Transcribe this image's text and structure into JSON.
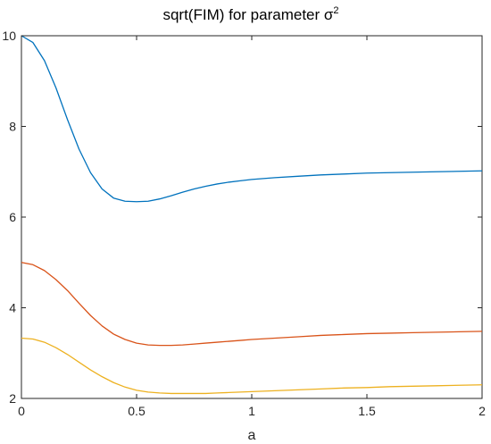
{
  "chart_data": {
    "type": "line",
    "title": "sqrt(FIM) for parameter σ",
    "title_superscript": "2",
    "xlabel": "a",
    "ylabel": "",
    "xlim": [
      0,
      2
    ],
    "ylim": [
      2,
      10
    ],
    "x_ticks": [
      "0",
      "0.5",
      "1",
      "1.5",
      "2"
    ],
    "y_ticks": [
      "2",
      "4",
      "6",
      "8",
      "10"
    ],
    "x_tick_values": [
      0,
      0.5,
      1,
      1.5,
      2
    ],
    "y_tick_values": [
      2,
      4,
      6,
      8,
      10
    ],
    "grid": false,
    "legend": "none",
    "x": [
      0,
      0.05,
      0.1,
      0.15,
      0.2,
      0.25,
      0.3,
      0.35,
      0.4,
      0.45,
      0.5,
      0.55,
      0.6,
      0.65,
      0.7,
      0.75,
      0.8,
      0.85,
      0.9,
      0.95,
      1.0,
      1.1,
      1.2,
      1.3,
      1.4,
      1.5,
      1.6,
      1.7,
      1.8,
      1.9,
      2.0
    ],
    "series": [
      {
        "color": "#0072BD",
        "values": [
          10.0,
          9.85,
          9.45,
          8.85,
          8.15,
          7.5,
          6.98,
          6.62,
          6.42,
          6.35,
          6.34,
          6.35,
          6.4,
          6.47,
          6.55,
          6.62,
          6.68,
          6.73,
          6.77,
          6.8,
          6.83,
          6.87,
          6.9,
          6.93,
          6.95,
          6.97,
          6.98,
          6.99,
          7.0,
          7.01,
          7.02
        ]
      },
      {
        "color": "#D95319",
        "values": [
          5.0,
          4.95,
          4.82,
          4.62,
          4.38,
          4.1,
          3.83,
          3.6,
          3.42,
          3.3,
          3.22,
          3.18,
          3.17,
          3.17,
          3.18,
          3.2,
          3.22,
          3.24,
          3.26,
          3.28,
          3.3,
          3.33,
          3.36,
          3.39,
          3.41,
          3.43,
          3.44,
          3.45,
          3.46,
          3.47,
          3.48
        ]
      },
      {
        "color": "#EDB120",
        "values": [
          3.33,
          3.31,
          3.24,
          3.12,
          2.97,
          2.8,
          2.63,
          2.48,
          2.35,
          2.25,
          2.18,
          2.14,
          2.12,
          2.11,
          2.11,
          2.11,
          2.11,
          2.12,
          2.13,
          2.14,
          2.15,
          2.17,
          2.19,
          2.21,
          2.23,
          2.24,
          2.26,
          2.27,
          2.28,
          2.29,
          2.3
        ]
      }
    ]
  }
}
